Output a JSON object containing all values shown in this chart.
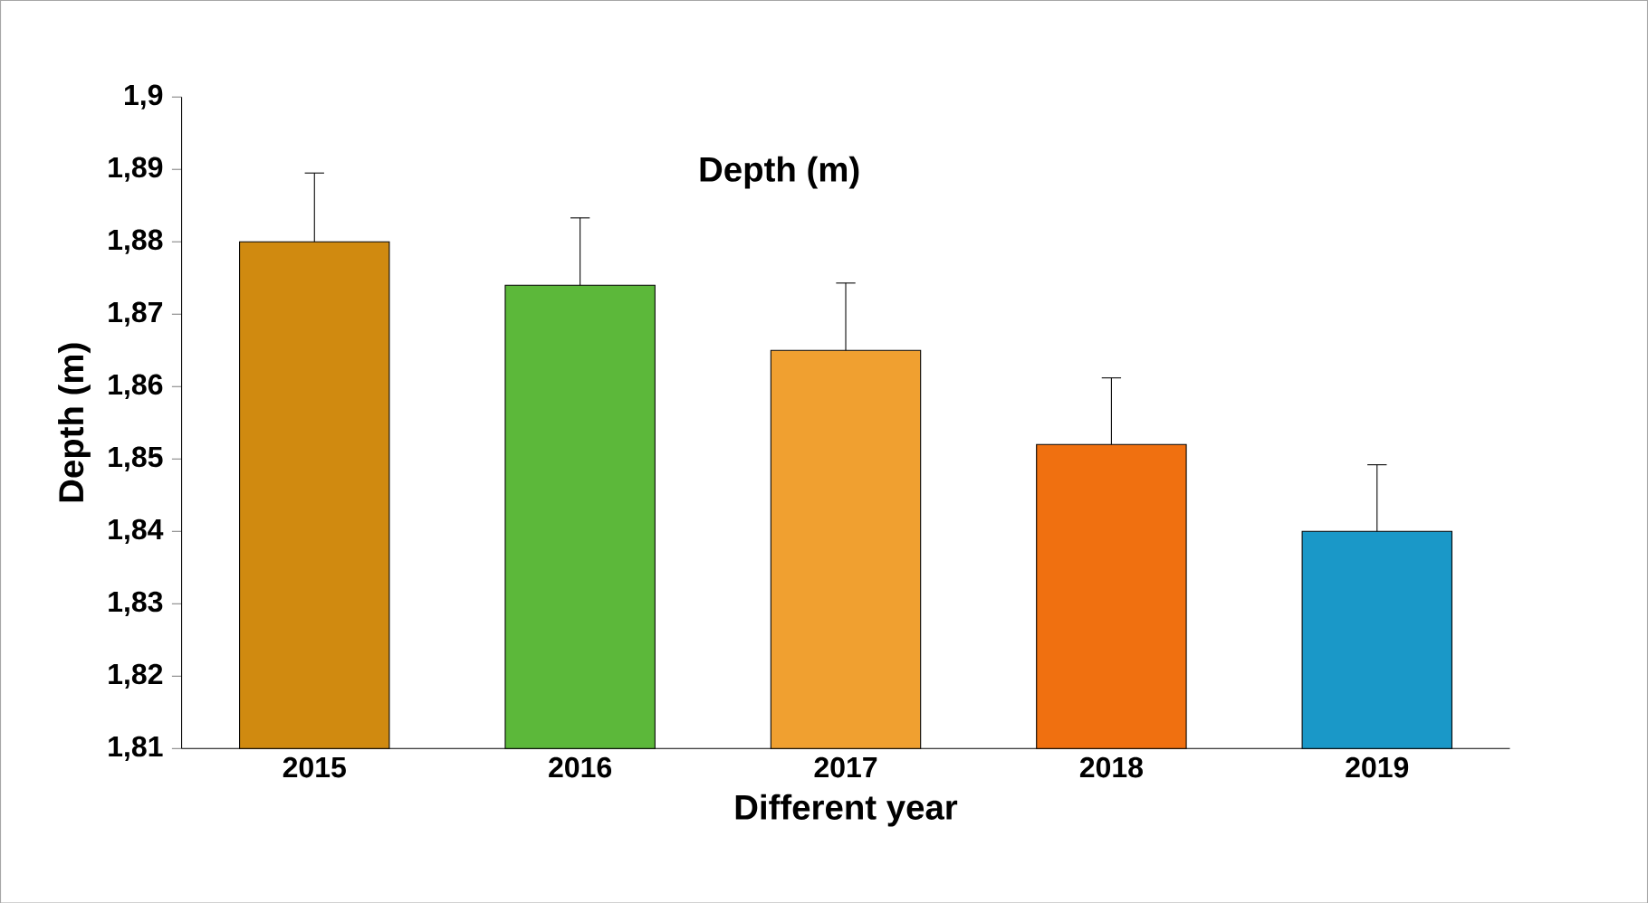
{
  "chart_data": {
    "type": "bar",
    "title": "Depth (m)",
    "xlabel": "Different year",
    "ylabel": "Depth  (m)",
    "categories": [
      "2015",
      "2016",
      "2017",
      "2018",
      "2019"
    ],
    "values": [
      1.88,
      1.874,
      1.865,
      1.852,
      1.84
    ],
    "colors": [
      "#d08a10",
      "#5cb83a",
      "#f0a030",
      "#f07010",
      "#1a98c8"
    ],
    "errors": [
      [
        1.88,
        1.8895
      ],
      [
        1.874,
        1.8833
      ],
      [
        1.865,
        1.8743
      ],
      [
        1.852,
        1.8612
      ],
      [
        1.84,
        1.8492
      ]
    ],
    "ylim": [
      1.81,
      1.9
    ],
    "yticks": [
      {
        "value": 1.81,
        "label": "1,81"
      },
      {
        "value": 1.82,
        "label": "1,82"
      },
      {
        "value": 1.83,
        "label": "1,83"
      },
      {
        "value": 1.84,
        "label": "1,84"
      },
      {
        "value": 1.85,
        "label": "1,85"
      },
      {
        "value": 1.86,
        "label": "1,86"
      },
      {
        "value": 1.87,
        "label": "1,87"
      },
      {
        "value": 1.88,
        "label": "1,88"
      },
      {
        "value": 1.89,
        "label": "1,89"
      },
      {
        "value": 1.9,
        "label": "1,9"
      }
    ]
  }
}
